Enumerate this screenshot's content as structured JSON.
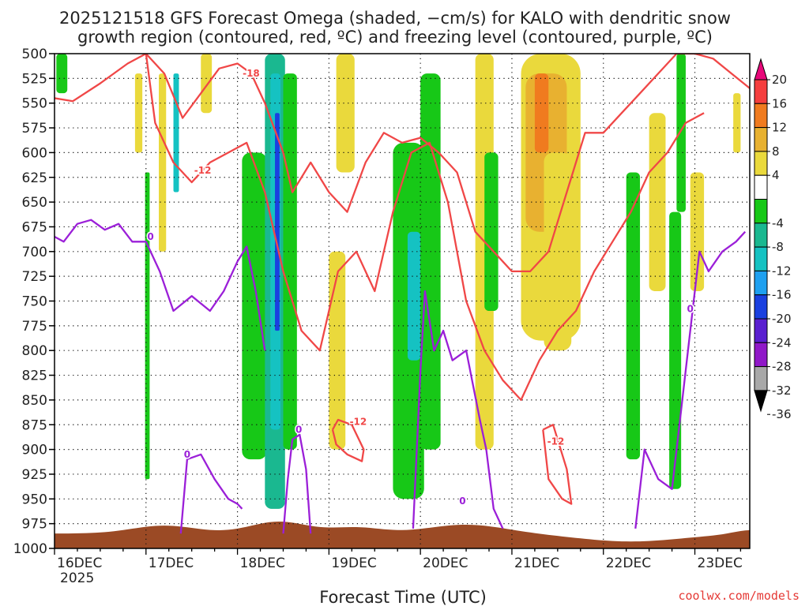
{
  "chart_data": {
    "type": "time-height cross-section",
    "title": [
      "2025121518 GFS Forecast Omega (shaded, −cm/s) for KALO with dendritic snow",
      "growth region (contoured, red, ºC) and freezing level (contoured, purple, ºC)"
    ],
    "xlabel": "Forecast Time (UTC)",
    "year_label": "2025",
    "credit": "coolwx.com/models",
    "x_range": [
      0,
      7.6
    ],
    "x_ticks": [
      {
        "label": "16DEC",
        "value": 0
      },
      {
        "label": "17DEC",
        "value": 1
      },
      {
        "label": "18DEC",
        "value": 2
      },
      {
        "label": "19DEC",
        "value": 3
      },
      {
        "label": "20DEC",
        "value": 4
      },
      {
        "label": "21DEC",
        "value": 5
      },
      {
        "label": "22DEC",
        "value": 6
      },
      {
        "label": "23DEC",
        "value": 7
      }
    ],
    "y_axis": {
      "unit": "hPa",
      "range": [
        1000,
        500
      ],
      "ticks": [
        500,
        525,
        550,
        575,
        600,
        625,
        650,
        675,
        700,
        725,
        750,
        775,
        800,
        825,
        850,
        875,
        900,
        925,
        950,
        975,
        1000
      ]
    },
    "colorbar": {
      "labels": [
        "20",
        "16",
        "12",
        "8",
        "4",
        "-4",
        "-8",
        "-12",
        "-16",
        "-20",
        "-24",
        "-28",
        "-32",
        "-36"
      ],
      "colors": [
        "#e8087a",
        "#f53e3e",
        "#f07b1f",
        "#e8b130",
        "#ead93c",
        "#ffffff",
        "#17c817",
        "#1ab890",
        "#15c2c2",
        "#1ea0f0",
        "#1a40e0",
        "#5a1fd0",
        "#9018c8",
        "#a8a8a8",
        "#000000"
      ]
    },
    "omega_features": [
      {
        "x": [
          0.02,
          0.14
        ],
        "p": [
          500,
          540
        ],
        "value": -6
      },
      {
        "x": [
          0.88,
          0.96
        ],
        "p": [
          520,
          600
        ],
        "value": 4
      },
      {
        "x": [
          0.99,
          1.04
        ],
        "p": [
          620,
          930
        ],
        "value": -6
      },
      {
        "x": [
          1.14,
          1.22
        ],
        "p": [
          520,
          700
        ],
        "value": 6
      },
      {
        "x": [
          1.3,
          1.36
        ],
        "p": [
          520,
          640
        ],
        "value": -12
      },
      {
        "x": [
          1.6,
          1.72
        ],
        "p": [
          500,
          560
        ],
        "value": 4
      },
      {
        "x": [
          2.05,
          2.32
        ],
        "p": [
          600,
          910
        ],
        "value": -6
      },
      {
        "x": [
          2.3,
          2.52
        ],
        "p": [
          500,
          960
        ],
        "value": -9
      },
      {
        "x": [
          2.36,
          2.47
        ],
        "p": [
          520,
          880
        ],
        "value": -14
      },
      {
        "x": [
          2.41,
          2.46
        ],
        "p": [
          560,
          780
        ],
        "value": -22
      },
      {
        "x": [
          2.5,
          2.65
        ],
        "p": [
          520,
          900
        ],
        "value": -6
      },
      {
        "x": [
          3.08,
          3.28
        ],
        "p": [
          500,
          620
        ],
        "value": 4
      },
      {
        "x": [
          3.0,
          3.18
        ],
        "p": [
          700,
          900
        ],
        "value": 4
      },
      {
        "x": [
          3.7,
          4.04
        ],
        "p": [
          590,
          950
        ],
        "value": -7
      },
      {
        "x": [
          3.86,
          4.0
        ],
        "p": [
          680,
          810
        ],
        "value": -13
      },
      {
        "x": [
          4.0,
          4.22
        ],
        "p": [
          520,
          900
        ],
        "value": -6
      },
      {
        "x": [
          4.6,
          4.8
        ],
        "p": [
          500,
          900
        ],
        "value": 4
      },
      {
        "x": [
          4.7,
          4.85
        ],
        "p": [
          600,
          760
        ],
        "value": -5
      },
      {
        "x": [
          5.1,
          5.75
        ],
        "p": [
          500,
          790
        ],
        "value": 5
      },
      {
        "x": [
          5.15,
          5.6
        ],
        "p": [
          520,
          680
        ],
        "value": 9
      },
      {
        "x": [
          5.25,
          5.4
        ],
        "p": [
          520,
          600
        ],
        "value": 13
      },
      {
        "x": [
          5.35,
          5.65
        ],
        "p": [
          600,
          800
        ],
        "value": 6
      },
      {
        "x": [
          6.25,
          6.4
        ],
        "p": [
          620,
          910
        ],
        "value": -6
      },
      {
        "x": [
          6.5,
          6.68
        ],
        "p": [
          560,
          740
        ],
        "value": 6
      },
      {
        "x": [
          6.72,
          6.85
        ],
        "p": [
          660,
          940
        ],
        "value": -6
      },
      {
        "x": [
          6.8,
          6.9
        ],
        "p": [
          500,
          660
        ],
        "value": -7
      },
      {
        "x": [
          6.95,
          7.1
        ],
        "p": [
          620,
          740
        ],
        "value": 5
      },
      {
        "x": [
          7.42,
          7.5
        ],
        "p": [
          540,
          600
        ],
        "value": 4
      }
    ],
    "contours": [
      {
        "name": "dgz-18-upper",
        "color": "#f04747",
        "label": "-18",
        "label_at": [
          2.15,
          520
        ],
        "x": [
          0.0,
          0.2,
          0.5,
          0.8,
          1.0,
          1.2,
          1.4,
          1.6,
          1.8,
          2.0,
          2.15,
          2.3,
          2.5,
          2.6,
          2.8,
          3.0,
          3.2,
          3.4,
          3.6,
          3.8,
          4.0,
          4.2,
          4.4,
          4.6,
          4.8,
          5.0,
          5.2,
          5.4,
          5.6,
          5.8,
          6.0,
          6.2,
          6.4,
          6.6,
          6.8,
          7.0,
          7.2,
          7.4,
          7.6
        ],
        "p": [
          545,
          548,
          530,
          510,
          500,
          520,
          565,
          540,
          515,
          510,
          520,
          550,
          600,
          640,
          610,
          640,
          660,
          610,
          580,
          590,
          585,
          600,
          620,
          680,
          700,
          720,
          720,
          700,
          640,
          580,
          580,
          560,
          540,
          520,
          500,
          500,
          505,
          520,
          535
        ]
      },
      {
        "name": "dgz-12-lower",
        "color": "#f04747",
        "label": "-12",
        "label_at": [
          1.62,
          618
        ],
        "x": [
          1.0,
          1.1,
          1.3,
          1.5,
          1.7,
          1.9,
          2.1,
          2.3,
          2.5,
          2.7,
          2.9,
          3.1,
          3.3,
          3.5,
          3.7,
          3.9,
          4.1,
          4.3,
          4.5,
          4.7,
          4.9,
          5.1,
          5.3,
          5.5,
          5.7,
          5.9,
          6.1,
          6.3,
          6.5,
          6.7,
          6.9,
          7.1
        ],
        "p": [
          500,
          570,
          610,
          630,
          610,
          600,
          590,
          640,
          720,
          780,
          800,
          720,
          700,
          740,
          660,
          600,
          590,
          650,
          750,
          800,
          830,
          850,
          810,
          780,
          760,
          720,
          690,
          660,
          620,
          600,
          570,
          560
        ]
      },
      {
        "name": "dgz-12-bubble-19dec",
        "color": "#f04747",
        "label": "-12",
        "label_at": [
          3.32,
          872
        ],
        "x": [
          3.04,
          3.1,
          3.25,
          3.38,
          3.36,
          3.2,
          3.08,
          3.04
        ],
        "p": [
          880,
          870,
          875,
          900,
          912,
          905,
          895,
          880
        ]
      },
      {
        "name": "dgz-12-bubble-21dec",
        "color": "#f04747",
        "label": "-12",
        "label_at": [
          5.48,
          892
        ],
        "x": [
          5.34,
          5.45,
          5.6,
          5.65,
          5.55,
          5.4,
          5.34
        ],
        "p": [
          880,
          875,
          920,
          955,
          950,
          930,
          880
        ]
      },
      {
        "name": "freezing-level-west",
        "color": "#9b1fd8",
        "label": "0",
        "label_at": [
          1.05,
          685
        ],
        "x": [
          0.0,
          0.1,
          0.25,
          0.4,
          0.55,
          0.7,
          0.85,
          1.0,
          1.15,
          1.3,
          1.5,
          1.7,
          1.85,
          2.0,
          2.1,
          2.2,
          2.3
        ],
        "p": [
          685,
          690,
          672,
          668,
          678,
          672,
          690,
          690,
          720,
          760,
          745,
          760,
          740,
          710,
          695,
          740,
          800
        ]
      },
      {
        "name": "freezing-level-low",
        "color": "#9b1fd8",
        "label": "0",
        "label_at": [
          1.45,
          905
        ],
        "x": [
          1.38,
          1.45,
          1.6,
          1.75,
          1.9,
          2.0,
          2.05
        ],
        "p": [
          985,
          910,
          905,
          930,
          950,
          955,
          960
        ]
      },
      {
        "name": "freezing-level-18dec",
        "color": "#9b1fd8",
        "label": "0",
        "label_at": [
          2.67,
          880
        ],
        "x": [
          2.5,
          2.55,
          2.6,
          2.68,
          2.75,
          2.8
        ],
        "p": [
          985,
          930,
          890,
          885,
          920,
          985
        ]
      },
      {
        "name": "freezing-level-20dec",
        "color": "#9b1fd8",
        "label": "0",
        "label_at": [
          4.46,
          952
        ],
        "x": [
          3.92,
          4.0,
          4.05,
          4.15,
          4.25,
          4.35,
          4.5,
          4.65,
          4.72,
          4.8,
          4.9
        ],
        "p": [
          980,
          820,
          740,
          800,
          780,
          810,
          800,
          870,
          900,
          960,
          980
        ]
      },
      {
        "name": "freezing-level-east",
        "color": "#9b1fd8",
        "label": "0",
        "label_at": [
          6.95,
          758
        ],
        "x": [
          6.35,
          6.45,
          6.6,
          6.75,
          6.85,
          6.95,
          7.05,
          7.15,
          7.3,
          7.45,
          7.55
        ],
        "p": [
          980,
          900,
          930,
          940,
          860,
          780,
          700,
          720,
          700,
          690,
          680
        ]
      }
    ]
  }
}
